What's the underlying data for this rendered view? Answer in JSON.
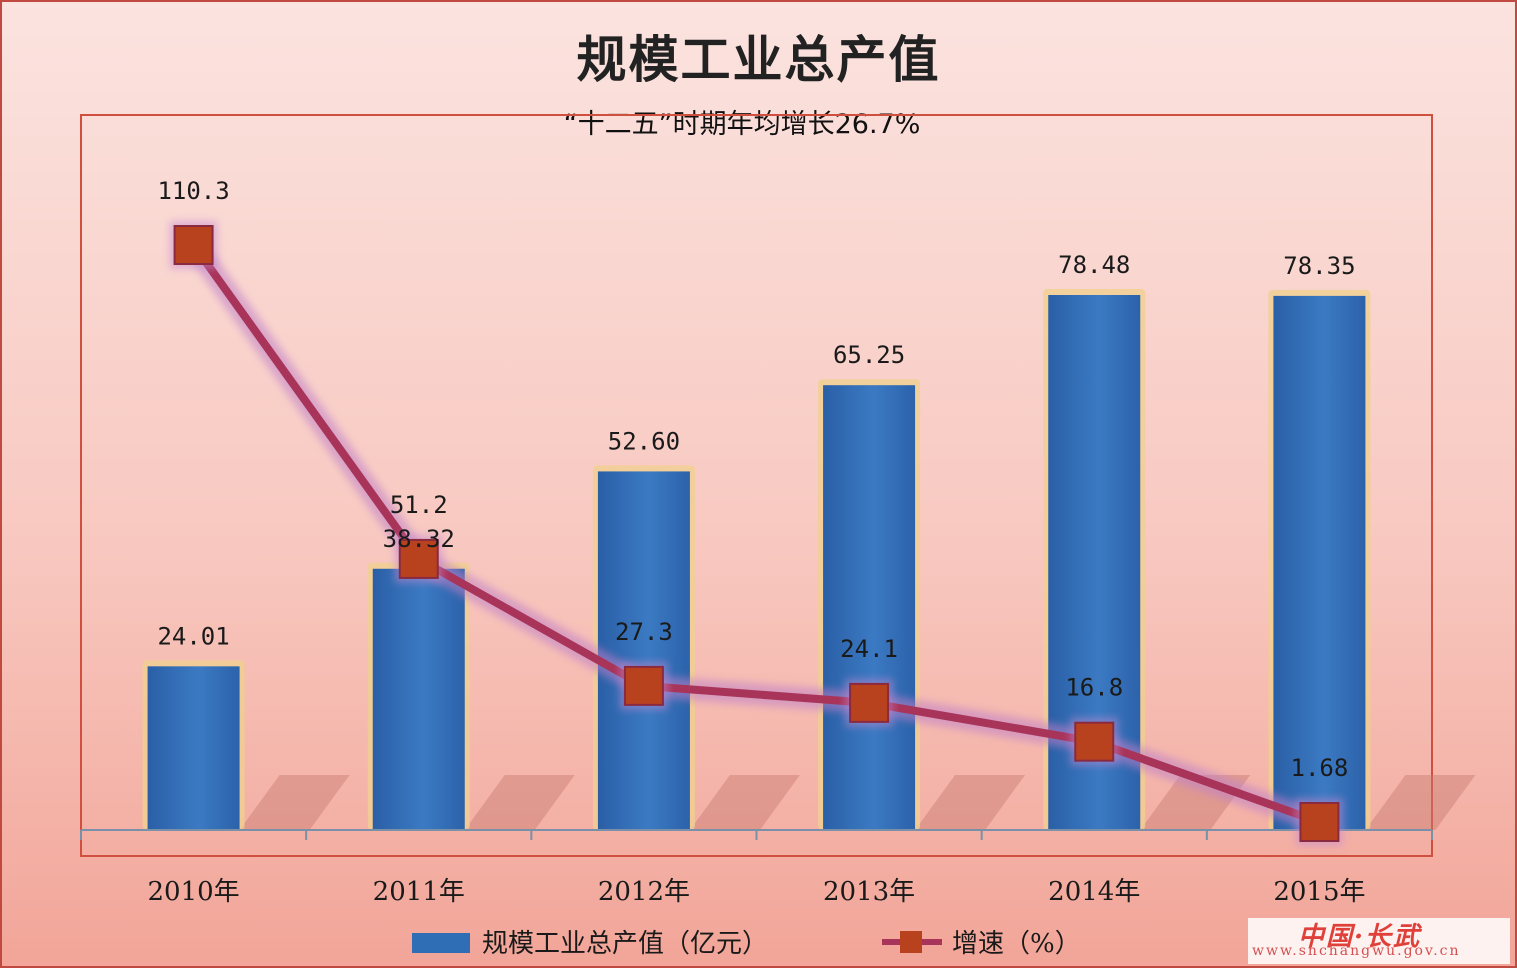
{
  "chart_data": {
    "type": "bar",
    "title": "规模工业总产值",
    "subtitle": "“十二五”时期年均增长26.7%",
    "categories": [
      "2010年",
      "2011年",
      "2012年",
      "2013年",
      "2014年",
      "2015年"
    ],
    "series": [
      {
        "name": "规模工业总产值（亿元）",
        "type": "bar",
        "color": "#2f6db5",
        "values": [
          24.01,
          38.32,
          52.6,
          65.25,
          78.48,
          78.35
        ],
        "labels": [
          "24.01",
          "38.32",
          "52.60",
          "65.25",
          "78.48",
          "78.35"
        ]
      },
      {
        "name": "增速（%）",
        "type": "line",
        "color": "#a8345a",
        "marker_color": "#b8411e",
        "values": [
          110.3,
          51.2,
          27.3,
          24.1,
          16.8,
          1.68
        ],
        "labels": [
          "110.3",
          "51.2",
          "27.3",
          "24.1",
          "16.8",
          "1.68"
        ]
      }
    ],
    "ylim_bar": [
      0,
      96
    ],
    "ylim_line": [
      0,
      125
    ],
    "grid": false,
    "legend_position": "bottom"
  },
  "watermark": {
    "logo": "中国·长武",
    "url": "www.snchangwu.gov.cn"
  }
}
